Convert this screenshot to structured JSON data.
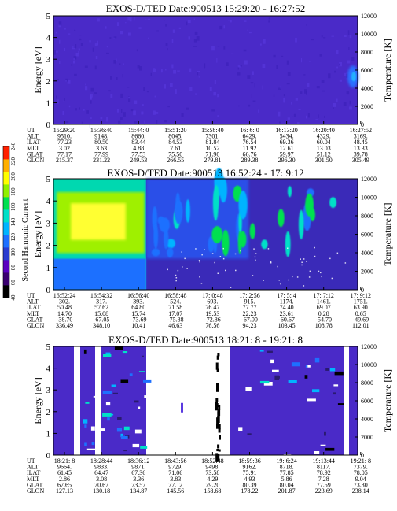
{
  "colorbar": {
    "label": "Second Harmonic Current",
    "ticks": [
      "40",
      "60",
      "80",
      "100",
      "120",
      "140",
      "160",
      "180",
      "200",
      "220",
      "240"
    ],
    "colors": [
      "#000000",
      "#3a0070",
      "#5a00c0",
      "#2a3cd0",
      "#1e70ff",
      "#00b4ff",
      "#00e0c8",
      "#00e050",
      "#90f000",
      "#ffff00",
      "#ffb000",
      "#ff2000"
    ]
  },
  "chart_data": [
    {
      "type": "heatmap",
      "title": "EXOS-D/TED   Date:900513  15:29:20 - 16:27:52",
      "ylabel": "Energy [eV]",
      "y2label": "Temperature [K]",
      "ylim": [
        0,
        5
      ],
      "y2lim": [
        0,
        12000
      ],
      "yticks": [
        "0",
        "1",
        "2",
        "3",
        "4",
        "5"
      ],
      "y2ticks": [
        "0",
        "2000",
        "4000",
        "6000",
        "8000",
        "10000",
        "12000"
      ],
      "row_labels": [
        "UT",
        "ALT",
        "ILAT",
        "MLT",
        "GLAT",
        "GLON"
      ],
      "columns": [
        [
          "15:29:20",
          "9510.",
          "77.23",
          "3.02",
          "77.17",
          "215.37"
        ],
        [
          "15:36:40",
          "9148.",
          "80.50",
          "3.63",
          "77.99",
          "231.22"
        ],
        [
          "15:44: 0",
          "8660.",
          "83.44",
          "4.88",
          "77.53",
          "249.53"
        ],
        [
          "15:51:20",
          "8045.",
          "84.53",
          "7.61",
          "75.50",
          "266.55"
        ],
        [
          "15:58:40",
          "7301.",
          "81.84",
          "10.52",
          "71.90",
          "279.81"
        ],
        [
          "16: 6: 0",
          "6429.",
          "76.54",
          "11.92",
          "66.76",
          "289.38"
        ],
        [
          "16:13:20",
          "5434.",
          "69.36",
          "12.61",
          "59.97",
          "296.30"
        ],
        [
          "16:20:40",
          "4329.",
          "60.04",
          "13.03",
          "51.12",
          "301.50"
        ],
        [
          "16:27:52",
          "3169.",
          "48.45",
          "13.33",
          "39.78",
          "305.49"
        ]
      ]
    },
    {
      "type": "heatmap",
      "title": "EXOS-D/TED   Date:900513  16:52:24 - 17: 9:12",
      "ylabel": "Energy [eV]",
      "y2label": "Temperature [K]",
      "ylim": [
        0,
        5
      ],
      "y2lim": [
        0,
        12000
      ],
      "yticks": [
        "0",
        "1",
        "2",
        "3",
        "4",
        "5"
      ],
      "y2ticks": [
        "0",
        "2000",
        "4000",
        "6000",
        "8000",
        "10000",
        "12000"
      ],
      "row_labels": [
        "UT",
        "ALT",
        "ILAT",
        "MLT",
        "GLAT",
        "GLON"
      ],
      "columns": [
        [
          "16:52:24",
          "302.",
          "50.48",
          "14.70",
          "-38.70",
          "336.49"
        ],
        [
          "16:54:32",
          "317.",
          "57.62",
          "15.08",
          "-67.05",
          "348.10"
        ],
        [
          "16:56:40",
          "393.",
          "64.80",
          "15.74",
          "-73.69",
          "10.41"
        ],
        [
          "16:58:48",
          "524.",
          "71.58",
          "17.07",
          "-75.88",
          "46.63"
        ],
        [
          "17: 0:48",
          "693.",
          "76.47",
          "19.53",
          "-72.86",
          "76.56"
        ],
        [
          "17: 2:56",
          "915.",
          "77.77",
          "22.23",
          "-67.00",
          "94.23"
        ],
        [
          "17: 5: 4",
          "1174.",
          "74.40",
          "23.61",
          "-60.67",
          "103.45"
        ],
        [
          "17: 7:12",
          "1461.",
          "69.07",
          "0.28",
          "-54.70",
          "108.78"
        ],
        [
          "17: 9:12",
          "1751.",
          "63.90",
          "0.65",
          "-49.69",
          "112.01"
        ]
      ]
    },
    {
      "type": "heatmap",
      "title": "EXOS-D/TED   Date:900513  18:21: 8 - 19:21: 8",
      "ylabel": "Energy [eV]",
      "y2label": "Temperature [K]",
      "ylim": [
        0,
        5
      ],
      "y2lim": [
        0,
        12000
      ],
      "yticks": [
        "0",
        "1",
        "2",
        "3",
        "4",
        "5"
      ],
      "y2ticks": [
        "0",
        "2000",
        "4000",
        "6000",
        "8000",
        "10000",
        "12000"
      ],
      "row_labels": [
        "UT",
        "ALT",
        "ILAT",
        "MLT",
        "GLAT",
        "GLON"
      ],
      "columns": [
        [
          "18:21: 8",
          "9664.",
          "61.45",
          "2.86",
          "67.65",
          "127.13"
        ],
        [
          "18:28:44",
          "9833.",
          "64.47",
          "3.08",
          "70.67",
          "130.18"
        ],
        [
          "18:36:12",
          "9871.",
          "67.36",
          "3.36",
          "73.57",
          "134.87"
        ],
        [
          "18:43:56",
          "9729.",
          "71.06",
          "3.83",
          "77.12",
          "145.56"
        ],
        [
          "18:52:48",
          "9498.",
          "73.58",
          "4.29",
          "79.20",
          "158.68"
        ],
        [
          "18:59:36",
          "9162.",
          "75.91",
          "4.93",
          "80.39",
          "178.22"
        ],
        [
          "19: 6:24",
          "8718.",
          "77.85",
          "5.86",
          "80.04",
          "201.87"
        ],
        [
          "19:13:44",
          "8117.",
          "78.92",
          "7.28",
          "77.59",
          "223.69"
        ],
        [
          "19:21: 8",
          "7379.",
          "78.05",
          "9.04",
          "73.30",
          "238.14"
        ]
      ]
    }
  ]
}
